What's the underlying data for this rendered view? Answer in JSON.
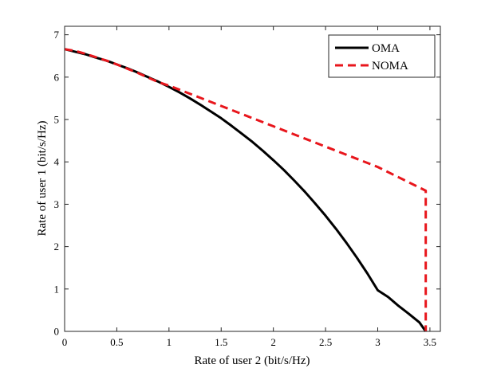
{
  "chart_data": {
    "type": "line",
    "title": "",
    "xlabel": "Rate of user 2 (bit/s/Hz)",
    "ylabel": "Rate of user 1 (bit/s/Hz)",
    "xlim": [
      0,
      3.6
    ],
    "ylim": [
      0,
      7.2
    ],
    "xticks": [
      0,
      0.5,
      1,
      1.5,
      2,
      2.5,
      3,
      3.5
    ],
    "xtick_labels": [
      "0",
      "0.5",
      "1",
      "1.5",
      "2",
      "2.5",
      "3",
      "3.5"
    ],
    "yticks": [
      0,
      1,
      2,
      3,
      4,
      5,
      6,
      7
    ],
    "ytick_labels": [
      "0",
      "1",
      "2",
      "3",
      "4",
      "5",
      "6",
      "7"
    ],
    "grid": false,
    "legend_position": "top-right",
    "series": [
      {
        "name": "OMA",
        "color": "#000000",
        "style": "solid",
        "x": [
          0,
          0.1,
          0.2,
          0.3,
          0.4,
          0.5,
          0.6,
          0.7,
          0.8,
          0.9,
          1.0,
          1.1,
          1.2,
          1.3,
          1.4,
          1.5,
          1.6,
          1.7,
          1.8,
          1.9,
          2.0,
          2.1,
          2.2,
          2.3,
          2.4,
          2.5,
          2.6,
          2.7,
          2.8,
          2.9,
          3.0,
          3.1,
          3.2,
          3.3,
          3.4,
          3.46
        ],
        "y": [
          6.66,
          6.6,
          6.54,
          6.46,
          6.39,
          6.3,
          6.21,
          6.11,
          6.0,
          5.89,
          5.77,
          5.64,
          5.5,
          5.35,
          5.19,
          5.03,
          4.85,
          4.66,
          4.47,
          4.26,
          4.04,
          3.81,
          3.56,
          3.3,
          3.02,
          2.73,
          2.42,
          2.09,
          1.74,
          1.37,
          0.97,
          0.81,
          0.6,
          0.41,
          0.21,
          0
        ]
      },
      {
        "name": "NOMA",
        "color": "#e8161c",
        "style": "dashed",
        "x": [
          0,
          0.1,
          0.2,
          0.3,
          0.4,
          0.5,
          0.6,
          0.7,
          0.8,
          0.9,
          1.0,
          1.5,
          2.0,
          2.5,
          3.0,
          3.46,
          3.46
        ],
        "y": [
          6.66,
          6.62,
          6.55,
          6.47,
          6.39,
          6.3,
          6.2,
          6.1,
          5.99,
          5.88,
          5.8,
          5.32,
          4.84,
          4.36,
          3.88,
          3.32,
          0
        ]
      }
    ]
  }
}
